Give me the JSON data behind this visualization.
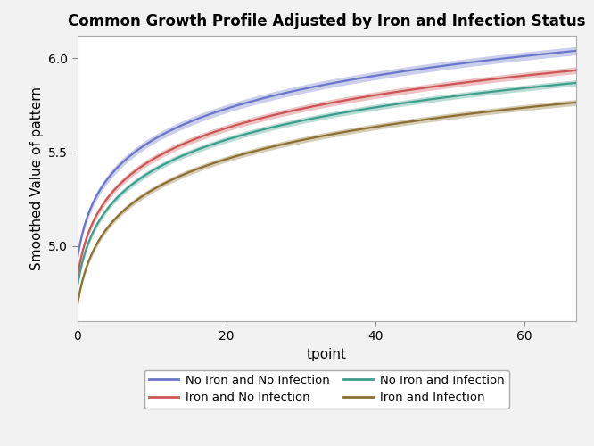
{
  "title": "Common Growth Profile Adjusted by Iron and Infection Status",
  "xlabel": "tpoint",
  "ylabel": "Smoothed Value of pattern",
  "x_min": 0,
  "x_max": 67,
  "y_min": 4.6,
  "y_max": 6.12,
  "x_ticks": [
    0,
    20,
    40,
    60
  ],
  "y_ticks": [
    5.0,
    5.5,
    6.0
  ],
  "series": [
    {
      "label": "No Iron and No Infection",
      "color": "#6B76C8",
      "a": 4.93,
      "k": 0.263,
      "band": 0.022
    },
    {
      "label": "Iron and No Infection",
      "color": "#CC5555",
      "a": 4.83,
      "k": 0.262,
      "band": 0.018
    },
    {
      "label": "No Iron and Infection",
      "color": "#3D9E8C",
      "a": 4.78,
      "k": 0.258,
      "band": 0.016
    },
    {
      "label": "Iron and Infection",
      "color": "#8B7032",
      "a": 4.68,
      "k": 0.257,
      "band": 0.016
    }
  ],
  "band_alpha": 0.35,
  "bg_color": "#f2f2f2",
  "plot_bg": "#ffffff",
  "spine_color": "#aaaaaa",
  "legend_border_color": "#aaaaaa",
  "title_fontsize": 12,
  "axis_label_fontsize": 11,
  "tick_fontsize": 10
}
